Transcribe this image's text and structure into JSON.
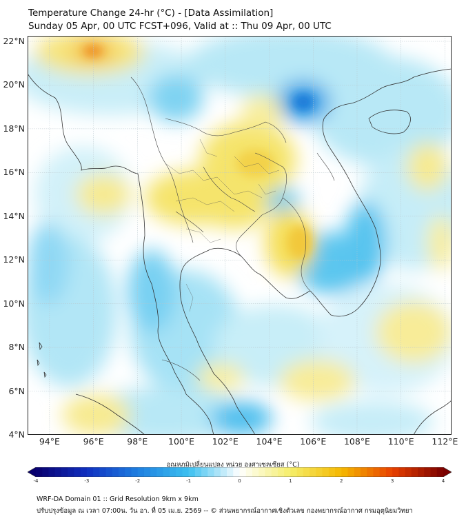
{
  "header": {
    "title_line1": "Temperature Change 24-hr (°C) - [Data Assimilation]",
    "title_line2": "Sunday 05 Apr, 00 UTC FCST+096, Valid at :: Thu 09 Apr, 00 UTC"
  },
  "map": {
    "lat_labels": [
      "22°N",
      "20°N",
      "18°N",
      "16°N",
      "14°N",
      "12°N",
      "10°N",
      "8°N",
      "6°N",
      "4°N"
    ],
    "lon_labels": [
      "94°E",
      "96°E",
      "98°E",
      "100°E",
      "102°E",
      "104°E",
      "106°E",
      "108°E",
      "110°E",
      "112°E"
    ],
    "lat_range": [
      4,
      22
    ],
    "lon_range": [
      93,
      112.3
    ],
    "grid": true,
    "land_outline_color": "#333333",
    "border_color": "#444444"
  },
  "colorbar": {
    "title": "อุณหภูมิเปลี่ยนแปลง หน่วย องศาเซลเซียส (°C)",
    "tick_labels": [
      "-4",
      "-3",
      "-2",
      "-1",
      "0",
      "1",
      "2",
      "3",
      "4"
    ],
    "range": [
      -4,
      4
    ],
    "colors": [
      "#08006e",
      "#1030c0",
      "#1e7fe0",
      "#3cc0f0",
      "#ffffff",
      "#f5ee6a",
      "#f5b800",
      "#e84000",
      "#7a0000"
    ]
  },
  "footer": {
    "line1": "WRF-DA Domain 01 :: Grid Resolution 9km x 9km",
    "line2": "ปรับปรุงข้อมูล ณ เวลา 07:00น. วัน อา. ที่ 05 เม.ย. 2569 -- © ส่วนพยากรณ์อากาศเชิงตัวเลข กองพยากรณ์อากาศ กรมอุตุนิยมวิทยา"
  }
}
